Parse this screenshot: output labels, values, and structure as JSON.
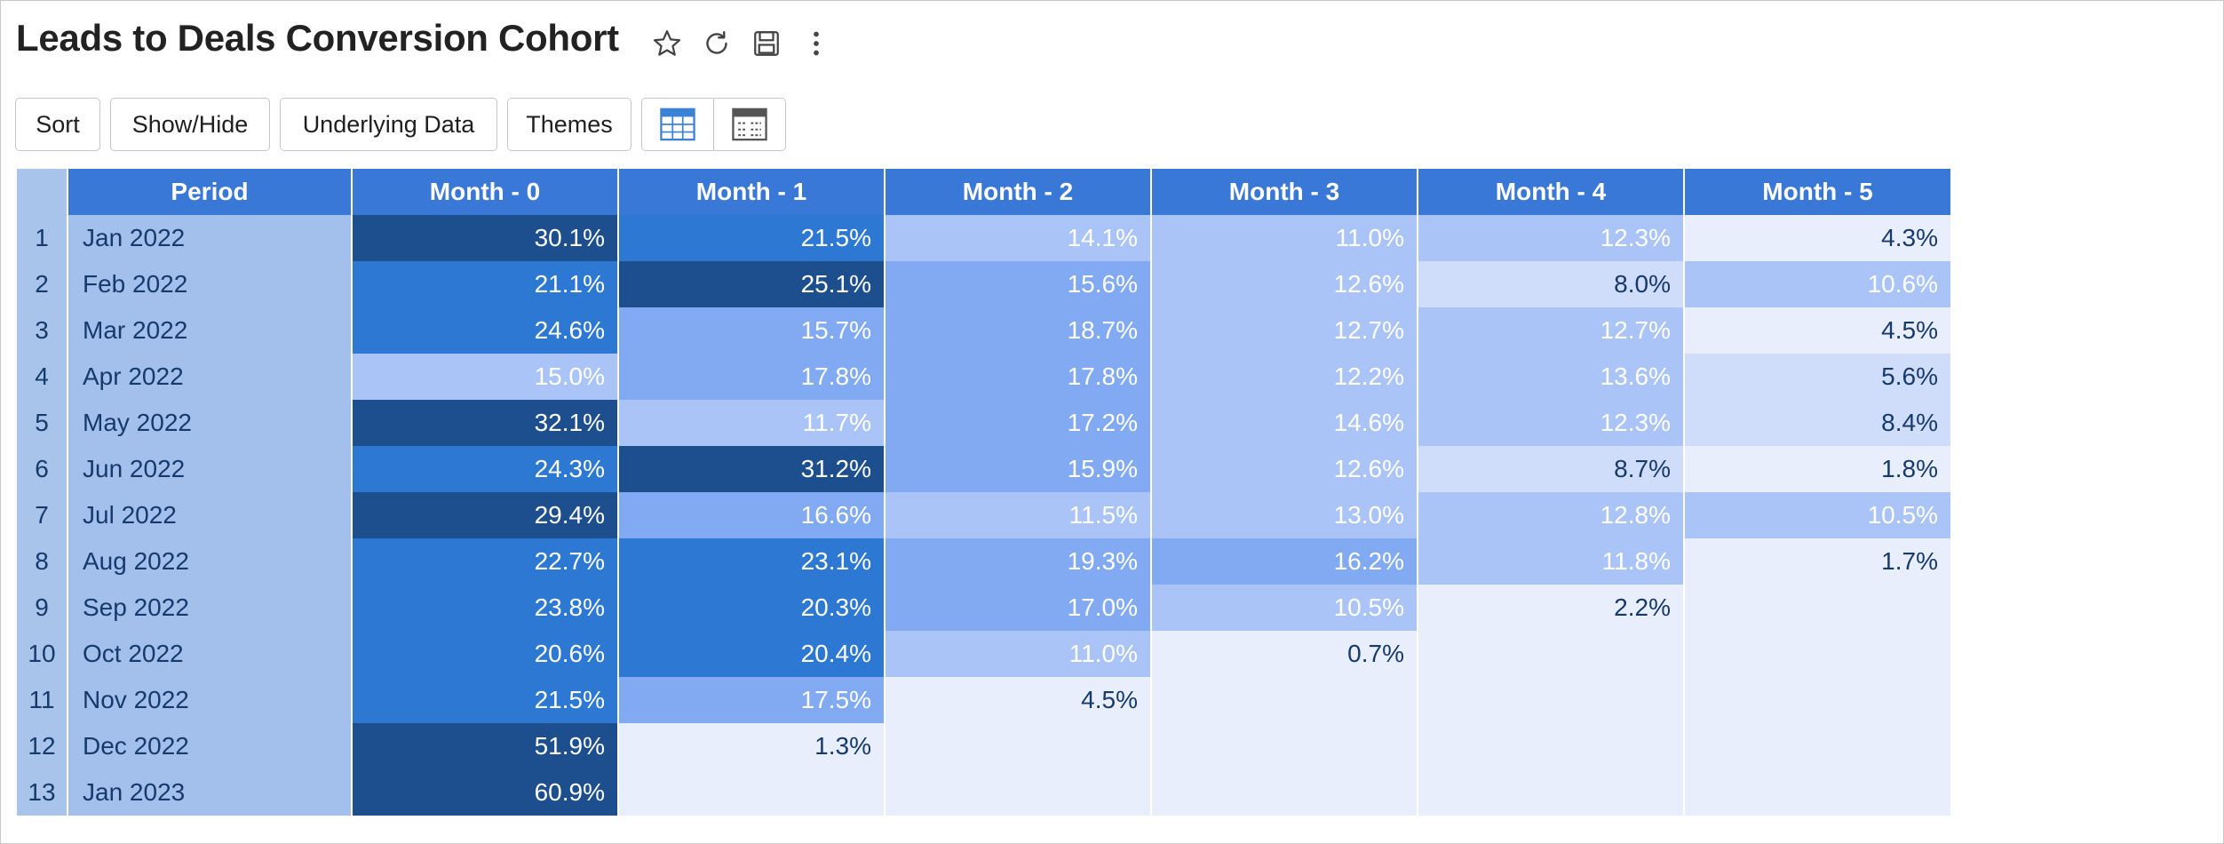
{
  "report": {
    "title": "Leads to Deals Conversion Cohort"
  },
  "title_icons": [
    {
      "name": "star-icon"
    },
    {
      "name": "refresh-icon"
    },
    {
      "name": "save-icon"
    },
    {
      "name": "more-vertical-icon"
    }
  ],
  "toolbar": {
    "sort_label": "Sort",
    "show_hide_label": "Show/Hide",
    "underlying_data_label": "Underlying Data",
    "themes_label": "Themes",
    "views": [
      {
        "name": "table-view-icon",
        "active": true,
        "color": "#3b82d6"
      },
      {
        "name": "summary-view-icon",
        "active": false,
        "color": "#555555"
      }
    ]
  },
  "table": {
    "columns": [
      "Period",
      "Month - 0",
      "Month - 1",
      "Month - 2",
      "Month - 3",
      "Month - 4",
      "Month - 5"
    ],
    "rows": [
      {
        "num": "1",
        "period": "Jan 2022",
        "cells": [
          {
            "t": "30.1%",
            "c": "c5"
          },
          {
            "t": "21.5%",
            "c": "c4"
          },
          {
            "t": "14.1%",
            "c": "c2"
          },
          {
            "t": "11.0%",
            "c": "c2"
          },
          {
            "t": "12.3%",
            "c": "c2"
          },
          {
            "t": "4.3%",
            "c": "c0"
          }
        ]
      },
      {
        "num": "2",
        "period": "Feb 2022",
        "cells": [
          {
            "t": "21.1%",
            "c": "c4"
          },
          {
            "t": "25.1%",
            "c": "c5"
          },
          {
            "t": "15.6%",
            "c": "c3"
          },
          {
            "t": "12.6%",
            "c": "c2"
          },
          {
            "t": "8.0%",
            "c": "c1"
          },
          {
            "t": "10.6%",
            "c": "c2"
          }
        ]
      },
      {
        "num": "3",
        "period": "Mar 2022",
        "cells": [
          {
            "t": "24.6%",
            "c": "c4"
          },
          {
            "t": "15.7%",
            "c": "c3"
          },
          {
            "t": "18.7%",
            "c": "c3"
          },
          {
            "t": "12.7%",
            "c": "c2"
          },
          {
            "t": "12.7%",
            "c": "c2"
          },
          {
            "t": "4.5%",
            "c": "c0"
          }
        ]
      },
      {
        "num": "4",
        "period": "Apr 2022",
        "cells": [
          {
            "t": "15.0%",
            "c": "c2"
          },
          {
            "t": "17.8%",
            "c": "c3"
          },
          {
            "t": "17.8%",
            "c": "c3"
          },
          {
            "t": "12.2%",
            "c": "c2"
          },
          {
            "t": "13.6%",
            "c": "c2"
          },
          {
            "t": "5.6%",
            "c": "c1"
          }
        ]
      },
      {
        "num": "5",
        "period": "May 2022",
        "cells": [
          {
            "t": "32.1%",
            "c": "c5"
          },
          {
            "t": "11.7%",
            "c": "c2"
          },
          {
            "t": "17.2%",
            "c": "c3"
          },
          {
            "t": "14.6%",
            "c": "c2"
          },
          {
            "t": "12.3%",
            "c": "c2"
          },
          {
            "t": "8.4%",
            "c": "c1"
          }
        ]
      },
      {
        "num": "6",
        "period": "Jun 2022",
        "cells": [
          {
            "t": "24.3%",
            "c": "c4"
          },
          {
            "t": "31.2%",
            "c": "c5"
          },
          {
            "t": "15.9%",
            "c": "c3"
          },
          {
            "t": "12.6%",
            "c": "c2"
          },
          {
            "t": "8.7%",
            "c": "c1"
          },
          {
            "t": "1.8%",
            "c": "c0"
          }
        ]
      },
      {
        "num": "7",
        "period": "Jul 2022",
        "cells": [
          {
            "t": "29.4%",
            "c": "c5"
          },
          {
            "t": "16.6%",
            "c": "c3"
          },
          {
            "t": "11.5%",
            "c": "c2"
          },
          {
            "t": "13.0%",
            "c": "c2"
          },
          {
            "t": "12.8%",
            "c": "c2"
          },
          {
            "t": "10.5%",
            "c": "c2"
          }
        ]
      },
      {
        "num": "8",
        "period": "Aug 2022",
        "cells": [
          {
            "t": "22.7%",
            "c": "c4"
          },
          {
            "t": "23.1%",
            "c": "c4"
          },
          {
            "t": "19.3%",
            "c": "c3"
          },
          {
            "t": "16.2%",
            "c": "c3"
          },
          {
            "t": "11.8%",
            "c": "c2"
          },
          {
            "t": "1.7%",
            "c": "c0"
          }
        ]
      },
      {
        "num": "9",
        "period": "Sep 2022",
        "cells": [
          {
            "t": "23.8%",
            "c": "c4"
          },
          {
            "t": "20.3%",
            "c": "c4"
          },
          {
            "t": "17.0%",
            "c": "c3"
          },
          {
            "t": "10.5%",
            "c": "c2"
          },
          {
            "t": "2.2%",
            "c": "c0"
          },
          {
            "t": "",
            "c": "c0"
          }
        ]
      },
      {
        "num": "10",
        "period": "Oct 2022",
        "cells": [
          {
            "t": "20.6%",
            "c": "c4"
          },
          {
            "t": "20.4%",
            "c": "c4"
          },
          {
            "t": "11.0%",
            "c": "c2"
          },
          {
            "t": "0.7%",
            "c": "c0"
          },
          {
            "t": "",
            "c": "c0"
          },
          {
            "t": "",
            "c": "c0"
          }
        ]
      },
      {
        "num": "11",
        "period": "Nov 2022",
        "cells": [
          {
            "t": "21.5%",
            "c": "c4"
          },
          {
            "t": "17.5%",
            "c": "c3"
          },
          {
            "t": "4.5%",
            "c": "c0"
          },
          {
            "t": "",
            "c": "c0"
          },
          {
            "t": "",
            "c": "c0"
          },
          {
            "t": "",
            "c": "c0"
          }
        ]
      },
      {
        "num": "12",
        "period": "Dec 2022",
        "cells": [
          {
            "t": "51.9%",
            "c": "c5"
          },
          {
            "t": "1.3%",
            "c": "c0"
          },
          {
            "t": "",
            "c": "c0"
          },
          {
            "t": "",
            "c": "c0"
          },
          {
            "t": "",
            "c": "c0"
          },
          {
            "t": "",
            "c": "c0"
          }
        ]
      },
      {
        "num": "13",
        "period": "Jan 2023",
        "cells": [
          {
            "t": "60.9%",
            "c": "c5"
          },
          {
            "t": "",
            "c": "c0"
          },
          {
            "t": "",
            "c": "c0"
          },
          {
            "t": "",
            "c": "c0"
          },
          {
            "t": "",
            "c": "c0"
          },
          {
            "t": "",
            "c": "c0"
          }
        ]
      }
    ]
  },
  "colors": {
    "header_bg": "#3a78d8",
    "period_bg": "#a3c0ec",
    "heat_darkest": "#1d4f8f",
    "heat_dark": "#2d78d2",
    "heat_mid": "#82aaf2",
    "heat_light": "#abc4f7",
    "heat_lighter": "#cfdcfa",
    "heat_empty": "#e8eefb"
  }
}
